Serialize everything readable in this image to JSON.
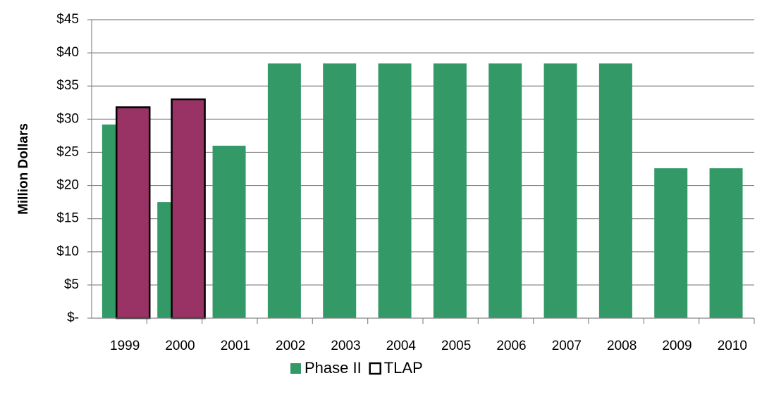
{
  "chart_data": {
    "type": "bar",
    "y_label": "Million Dollars",
    "categories": [
      "1999",
      "2000",
      "2001",
      "2002",
      "2003",
      "2004",
      "2005",
      "2006",
      "2007",
      "2008",
      "2009",
      "2010"
    ],
    "series": [
      {
        "name": "Phase II",
        "color": "#339966",
        "values": [
          29.2,
          17.5,
          26,
          38.4,
          38.4,
          38.4,
          38.4,
          38.4,
          38.4,
          38.4,
          22.6,
          22.6
        ]
      },
      {
        "name": "TLAP",
        "color": "#993366",
        "values": [
          31.8,
          33,
          null,
          null,
          null,
          null,
          null,
          null,
          null,
          null,
          null,
          null
        ]
      }
    ],
    "ylim": [
      0,
      45
    ],
    "yticks": [
      {
        "value": 0,
        "label": "$-"
      },
      {
        "value": 5,
        "label": "$5"
      },
      {
        "value": 10,
        "label": "$10"
      },
      {
        "value": 15,
        "label": "$15"
      },
      {
        "value": 20,
        "label": "$20"
      },
      {
        "value": 25,
        "label": "$25"
      },
      {
        "value": 30,
        "label": "$30"
      },
      {
        "value": 35,
        "label": "$35"
      },
      {
        "value": 40,
        "label": "$40"
      },
      {
        "value": 45,
        "label": "$45"
      }
    ],
    "grid": true,
    "legend": "bottom"
  }
}
